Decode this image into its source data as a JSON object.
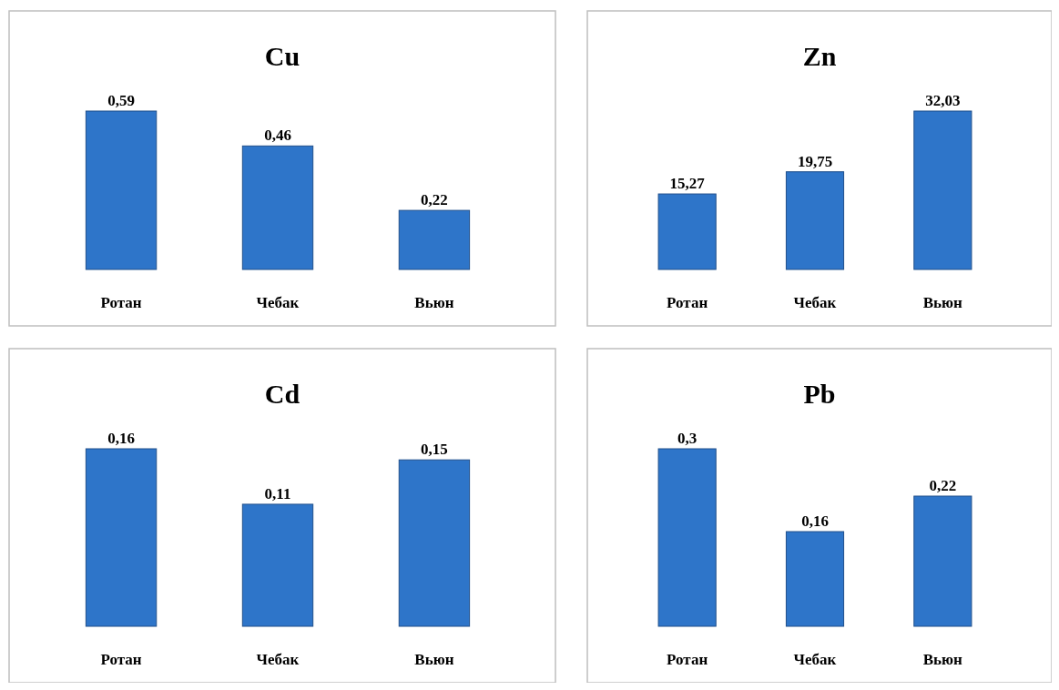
{
  "chart_data": [
    {
      "type": "bar",
      "title": "Cu",
      "categories": [
        "Ротан",
        "Чебак",
        "Вьюн"
      ],
      "values": [
        0.59,
        0.46,
        0.22
      ],
      "value_labels": [
        "0,59",
        "0,46",
        "0,22"
      ],
      "color": "#2e75c9"
    },
    {
      "type": "bar",
      "title": "Zn",
      "categories": [
        "Ротан",
        "Чебак",
        "Вьюн"
      ],
      "values": [
        15.27,
        19.75,
        32.03
      ],
      "value_labels": [
        "15,27",
        "19,75",
        "32,03"
      ],
      "color": "#2e75c9"
    },
    {
      "type": "bar",
      "title": "Cd",
      "categories": [
        "Ротан",
        "Чебак",
        "Вьюн"
      ],
      "values": [
        0.16,
        0.11,
        0.15
      ],
      "value_labels": [
        "0,16",
        "0,11",
        "0,15"
      ],
      "color": "#2e75c9"
    },
    {
      "type": "bar",
      "title": "Pb",
      "categories": [
        "Ротан",
        "Чебак",
        "Вьюн"
      ],
      "values": [
        0.3,
        0.16,
        0.22
      ],
      "value_labels": [
        "0,3",
        "0,16",
        "0,22"
      ],
      "color": "#2e75c9"
    }
  ]
}
